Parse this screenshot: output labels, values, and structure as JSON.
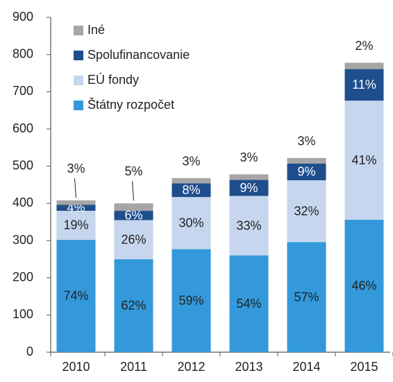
{
  "chart_data": {
    "type": "stacked_bar",
    "categories": [
      "2010",
      "2011",
      "2012",
      "2013",
      "2014",
      "2015"
    ],
    "series": [
      {
        "name": "Štátny rozpočet",
        "color": "#3399db",
        "values": [
          302,
          250,
          277,
          260,
          296,
          356
        ],
        "segment_labels": [
          "74%",
          "62%",
          "59%",
          "54%",
          "57%",
          "46%"
        ]
      },
      {
        "name": "EÚ fondy",
        "color": "#c6d6ee",
        "values": [
          78,
          105,
          140,
          160,
          166,
          320
        ],
        "segment_labels": [
          "19%",
          "26%",
          "30%",
          "33%",
          "32%",
          "41%"
        ]
      },
      {
        "name": "Spolufinancovanie",
        "color": "#1f4e8c",
        "values": [
          16,
          25,
          37,
          43,
          45,
          85
        ],
        "segment_labels": [
          "4%",
          "6%",
          "8%",
          "9%",
          "9%",
          "11%"
        ]
      },
      {
        "name": "Iné",
        "color": "#a6a6a6",
        "values": [
          12,
          20,
          14,
          15,
          15,
          17
        ],
        "segment_labels": [
          "3%",
          "5%",
          "3%",
          "3%",
          "3%",
          "2%"
        ]
      }
    ],
    "ylim": [
      0,
      900
    ],
    "yticks": [
      0,
      100,
      200,
      300,
      400,
      500,
      600,
      700,
      800,
      900
    ],
    "legend": "upper left"
  }
}
